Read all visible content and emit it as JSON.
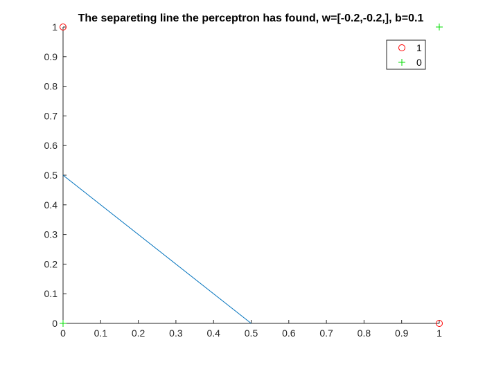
{
  "chart_data": {
    "type": "scatter",
    "title": "The separeting line the perceptron has found, w=[-0.2,-0.2,], b=0.1",
    "xlabel": "",
    "ylabel": "",
    "xlim": [
      0,
      1
    ],
    "ylim": [
      0,
      1
    ],
    "xticks": [
      "0",
      "0.1",
      "0.2",
      "0.3",
      "0.4",
      "0.5",
      "0.6",
      "0.7",
      "0.8",
      "0.9",
      "1"
    ],
    "yticks": [
      "0",
      "0.1",
      "0.2",
      "0.3",
      "0.4",
      "0.5",
      "0.6",
      "0.7",
      "0.8",
      "0.9",
      "1"
    ],
    "grid": false,
    "legend_position": "top-right",
    "series": [
      {
        "name": "1",
        "marker": "circle",
        "color": "#ff0000",
        "points": [
          [
            0,
            1
          ],
          [
            1,
            0
          ]
        ]
      },
      {
        "name": "0",
        "marker": "plus",
        "color": "#00dd00",
        "points": [
          [
            0,
            0
          ],
          [
            1,
            1
          ]
        ]
      }
    ],
    "line": {
      "color": "#0072bd",
      "points": [
        [
          0,
          0.5
        ],
        [
          0.5,
          0
        ]
      ]
    }
  }
}
